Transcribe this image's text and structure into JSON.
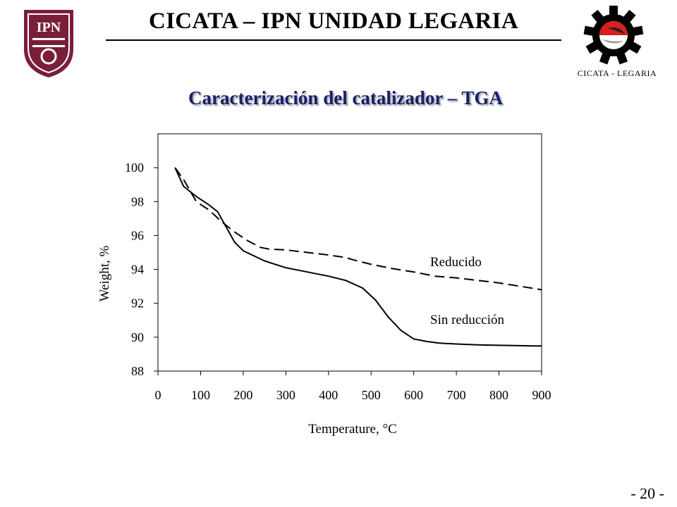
{
  "header": {
    "title": "CICATA – IPN UNIDAD LEGARIA",
    "right_logo_caption": "CICATA - LEGARIA",
    "left_logo_lettering": "IPN"
  },
  "slide": {
    "title": "Caracterización del catalizador – TGA",
    "page_number": "- 20 -"
  },
  "colors": {
    "title": "#17206a",
    "left_logo": "#7a1f3a",
    "right_logo_gear": "#000000",
    "right_logo_accent": "#d81e1e"
  },
  "chart_data": {
    "type": "line",
    "xlabel": "Temperature, °C",
    "ylabel": "Weight, %",
    "xlim": [
      0,
      900
    ],
    "ylim": [
      88,
      102
    ],
    "xticks": [
      0,
      100,
      200,
      300,
      400,
      500,
      600,
      700,
      800,
      900
    ],
    "yticks": [
      88,
      90,
      92,
      94,
      96,
      98,
      100
    ],
    "grid": false,
    "series": [
      {
        "name": "Reducido",
        "style": "dashed",
        "x": [
          40,
          60,
          90,
          120,
          150,
          180,
          210,
          240,
          260,
          300,
          350,
          400,
          440,
          460,
          500,
          550,
          600,
          650,
          700,
          750,
          800,
          850,
          900
        ],
        "y": [
          100.0,
          99.3,
          98.0,
          97.5,
          96.8,
          96.2,
          95.7,
          95.3,
          95.2,
          95.15,
          95.0,
          94.85,
          94.7,
          94.55,
          94.3,
          94.05,
          93.85,
          93.6,
          93.5,
          93.35,
          93.2,
          93.0,
          92.8
        ]
      },
      {
        "name": "Sin reducción",
        "style": "solid",
        "x": [
          40,
          60,
          90,
          120,
          140,
          160,
          180,
          200,
          250,
          300,
          350,
          400,
          440,
          480,
          510,
          540,
          570,
          600,
          630,
          660,
          700,
          750,
          800,
          850,
          900
        ],
        "y": [
          100.0,
          98.9,
          98.3,
          97.8,
          97.4,
          96.5,
          95.6,
          95.1,
          94.5,
          94.1,
          93.85,
          93.6,
          93.35,
          92.9,
          92.2,
          91.2,
          90.4,
          89.9,
          89.75,
          89.65,
          89.6,
          89.55,
          89.52,
          89.5,
          89.48
        ]
      }
    ],
    "annotations": [
      {
        "text": "Reducido",
        "series": "Reducido"
      },
      {
        "text": "Sin reducción",
        "series": "Sin reducción"
      }
    ]
  }
}
